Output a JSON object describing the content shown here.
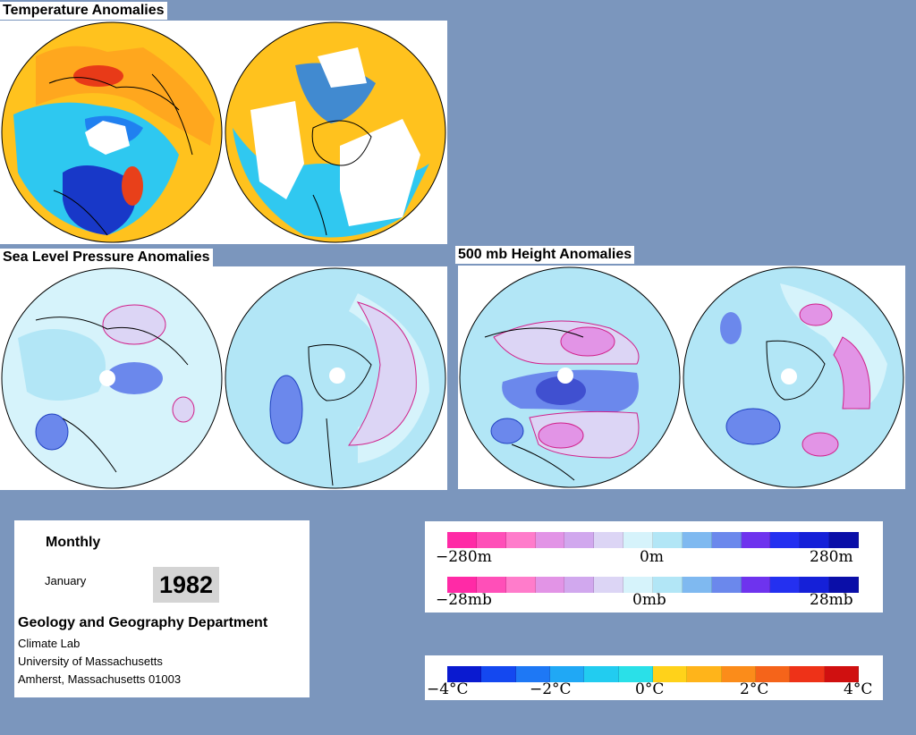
{
  "titles": {
    "temperature": "Temperature Anomalies",
    "slp": "Sea Level Pressure Anomalies",
    "height500": "500 mb Height Anomalies"
  },
  "info": {
    "period": "Monthly",
    "month": "January",
    "year": "1982",
    "department": "Geology and Geography Department",
    "lab": "Climate Lab",
    "university": "University of Massachusetts",
    "address": "Amherst, Massachusetts 01003"
  },
  "legends": {
    "height": {
      "left": "−280m",
      "mid": "0m",
      "right": "280m"
    },
    "pressure": {
      "left": "−28mb",
      "mid": "0mb",
      "right": "28mb"
    },
    "temperature": {
      "t1": "−4°C",
      "t2": "−2°C",
      "t3": "0°C",
      "t4": "2°C",
      "t5": "4°C"
    }
  },
  "colors": {
    "background": "#7b96bd",
    "anomaly_scale": [
      "#ff2aa6",
      "#ff4fb8",
      "#ff7ccb",
      "#e294e6",
      "#d1a8ee",
      "#dcd5f5",
      "#d6f3fb",
      "#b2e6f6",
      "#7fb9f0",
      "#6b88ec",
      "#6e33ee",
      "#2430f0",
      "#1520d8",
      "#0a0ea8"
    ],
    "temperature_scale": [
      "#0a1ad0",
      "#1448f0",
      "#1e78f5",
      "#20a8f5",
      "#22ccf0",
      "#2ae0e8",
      "#ffd21a",
      "#ffb41a",
      "#fb8c1a",
      "#f5641a",
      "#ee3218",
      "#d01010"
    ]
  }
}
